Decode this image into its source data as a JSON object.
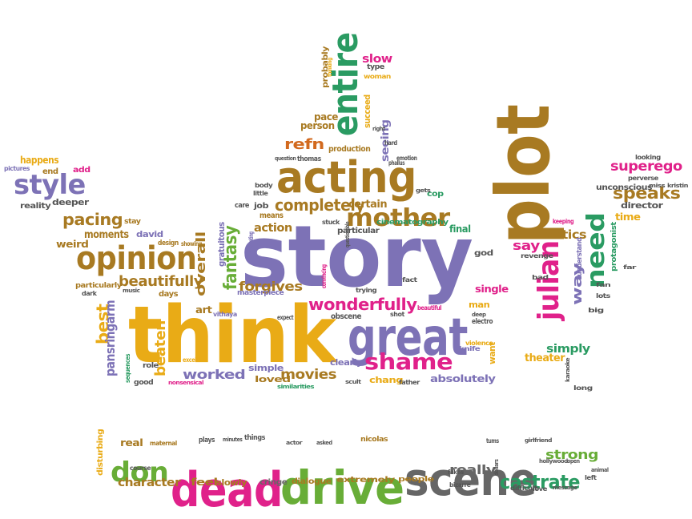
{
  "word_cloud": {
    "words": [
      {
        "text": "story",
        "color": "#7d72b6"
      },
      {
        "text": "think",
        "color": "#e9ab16"
      },
      {
        "text": "plot",
        "color": "#a87a22"
      },
      {
        "text": "great",
        "color": "#7d72b6"
      },
      {
        "text": "acting",
        "color": "#a87a22"
      },
      {
        "text": "entire",
        "color": "#2a9b62"
      },
      {
        "text": "opinion",
        "color": "#a87a22"
      },
      {
        "text": "style",
        "color": "#7d72b6"
      },
      {
        "text": "mother",
        "color": "#a87a22"
      },
      {
        "text": "julian",
        "color": "#e0218a"
      },
      {
        "text": "need",
        "color": "#2a9b62"
      },
      {
        "text": "shame",
        "color": "#e0218a"
      },
      {
        "text": "wonderfully",
        "color": "#e0218a"
      },
      {
        "text": "fantasy",
        "color": "#68ad37"
      },
      {
        "text": "completely",
        "color": "#a87a22"
      },
      {
        "text": "refn",
        "color": "#d2691e"
      },
      {
        "text": "pacing",
        "color": "#a87a22"
      },
      {
        "text": "beautifully",
        "color": "#a87a22"
      },
      {
        "text": "speaks",
        "color": "#a87a22"
      },
      {
        "text": "superego",
        "color": "#e0218a"
      },
      {
        "text": "best",
        "color": "#e9ab16"
      },
      {
        "text": "pansringarm",
        "color": "#7d72b6"
      },
      {
        "text": "beaten",
        "color": "#e9ab16"
      },
      {
        "text": "worked",
        "color": "#7d72b6"
      },
      {
        "text": "movies",
        "color": "#a87a22"
      },
      {
        "text": "forgives",
        "color": "#a87a22"
      },
      {
        "text": "overall",
        "color": "#a87a22"
      },
      {
        "text": "slow",
        "color": "#e0218a"
      },
      {
        "text": "critics",
        "color": "#a87a22"
      },
      {
        "text": "say",
        "color": "#e0218a"
      },
      {
        "text": "simply",
        "color": "#2a9b62"
      },
      {
        "text": "theater",
        "color": "#e9ab16"
      },
      {
        "text": "way",
        "color": "#7d72b6"
      },
      {
        "text": "absolutely",
        "color": "#7d72b6"
      },
      {
        "text": "chang",
        "color": "#e9ab16"
      },
      {
        "text": "clearly",
        "color": "#7d72b6"
      },
      {
        "text": "loved",
        "color": "#a87a22"
      },
      {
        "text": "simple",
        "color": "#7d72b6"
      },
      {
        "text": "action",
        "color": "#a87a22"
      },
      {
        "text": "masterpiece",
        "color": "#7d72b6"
      },
      {
        "text": "moments",
        "color": "#a87a22"
      },
      {
        "text": "david",
        "color": "#7d72b6"
      },
      {
        "text": "weird",
        "color": "#a87a22"
      },
      {
        "text": "deeper",
        "color": "#555555"
      },
      {
        "text": "happens",
        "color": "#e9ab16"
      },
      {
        "text": "reality",
        "color": "#555555"
      },
      {
        "text": "pictures",
        "color": "#7d72b6"
      },
      {
        "text": "end",
        "color": "#a87a22"
      },
      {
        "text": "add",
        "color": "#e0218a"
      },
      {
        "text": "certain",
        "color": "#a87a22"
      },
      {
        "text": "particular",
        "color": "#555555"
      },
      {
        "text": "cinematography",
        "color": "#2a9b62"
      },
      {
        "text": "final",
        "color": "#2a9b62"
      },
      {
        "text": "cop",
        "color": "#2a9b62"
      },
      {
        "text": "seeing",
        "color": "#7d72b6"
      },
      {
        "text": "succeed",
        "color": "#e9ab16"
      },
      {
        "text": "pace",
        "color": "#a87a22"
      },
      {
        "text": "person",
        "color": "#a87a22"
      },
      {
        "text": "probably",
        "color": "#a87a22"
      },
      {
        "text": "type",
        "color": "#555555"
      },
      {
        "text": "woman",
        "color": "#e9ab16"
      },
      {
        "text": "thinking",
        "color": "#e9ab16"
      },
      {
        "text": "production",
        "color": "#a87a22"
      },
      {
        "text": "thomas",
        "color": "#555555"
      },
      {
        "text": "question",
        "color": "#555555"
      },
      {
        "text": "job",
        "color": "#555555"
      },
      {
        "text": "means",
        "color": "#a87a22"
      },
      {
        "text": "body",
        "color": "#555555"
      },
      {
        "text": "little",
        "color": "#555555"
      },
      {
        "text": "care",
        "color": "#555555"
      },
      {
        "text": "stay",
        "color": "#a87a22"
      },
      {
        "text": "design",
        "color": "#a87a22"
      },
      {
        "text": "showing",
        "color": "#a87a22"
      },
      {
        "text": "gratuitous",
        "color": "#7d72b6"
      },
      {
        "text": "fascinating",
        "color": "#7d72b6"
      },
      {
        "text": "convincing",
        "color": "#e0218a"
      },
      {
        "text": "stuck",
        "color": "#555555"
      },
      {
        "text": "questionable",
        "color": "#555555"
      },
      {
        "text": "trying",
        "color": "#555555"
      },
      {
        "text": "fact",
        "color": "#555555"
      },
      {
        "text": "shot",
        "color": "#555555"
      },
      {
        "text": "beautiful",
        "color": "#e0218a"
      },
      {
        "text": "obscene",
        "color": "#555555"
      },
      {
        "text": "expect",
        "color": "#555555"
      },
      {
        "text": "vithaya",
        "color": "#7d72b6"
      },
      {
        "text": "art",
        "color": "#a87a22"
      },
      {
        "text": "days",
        "color": "#a87a22"
      },
      {
        "text": "particularly",
        "color": "#a87a22"
      },
      {
        "text": "dark",
        "color": "#555555"
      },
      {
        "text": "music",
        "color": "#555555"
      },
      {
        "text": "role",
        "color": "#555555"
      },
      {
        "text": "excellent",
        "color": "#e9ab16"
      },
      {
        "text": "sequences",
        "color": "#2a9b62"
      },
      {
        "text": "good",
        "color": "#555555"
      },
      {
        "text": "nonsensical",
        "color": "#e0218a"
      },
      {
        "text": "similarities",
        "color": "#2a9b62"
      },
      {
        "text": "scult",
        "color": "#555555"
      },
      {
        "text": "father",
        "color": "#555555"
      },
      {
        "text": "knife",
        "color": "#7d72b6"
      },
      {
        "text": "violence",
        "color": "#e9ab16"
      },
      {
        "text": "want",
        "color": "#e9ab16"
      },
      {
        "text": "electro",
        "color": "#555555"
      },
      {
        "text": "deep",
        "color": "#555555"
      },
      {
        "text": "man",
        "color": "#e9ab16"
      },
      {
        "text": "single",
        "color": "#e0218a"
      },
      {
        "text": "god",
        "color": "#555555"
      },
      {
        "text": "revenge",
        "color": "#555555"
      },
      {
        "text": "bad",
        "color": "#555555"
      },
      {
        "text": "understand",
        "color": "#7d72b6"
      },
      {
        "text": "keeping",
        "color": "#e0218a"
      },
      {
        "text": "protagonist",
        "color": "#2a9b62"
      },
      {
        "text": "far",
        "color": "#555555"
      },
      {
        "text": "lots",
        "color": "#555555"
      },
      {
        "text": "big",
        "color": "#555555"
      },
      {
        "text": "fan",
        "color": "#555555"
      },
      {
        "text": "time",
        "color": "#e9ab16"
      },
      {
        "text": "director",
        "color": "#555555"
      },
      {
        "text": "unconscious",
        "color": "#555555"
      },
      {
        "text": "perverse",
        "color": "#555555"
      },
      {
        "text": "miss",
        "color": "#555555"
      },
      {
        "text": "kristin",
        "color": "#555555"
      },
      {
        "text": "looking",
        "color": "#555555"
      },
      {
        "text": "long",
        "color": "#555555"
      },
      {
        "text": "karaoke",
        "color": "#555555"
      },
      {
        "text": "emotion",
        "color": "#555555"
      },
      {
        "text": "phallus",
        "color": "#555555"
      },
      {
        "text": "hard",
        "color": "#555555"
      },
      {
        "text": "right",
        "color": "#555555"
      },
      {
        "text": "gets",
        "color": "#555555"
      },
      {
        "text": "dead",
        "color": "#e0218a"
      },
      {
        "text": "drive",
        "color": "#68ad37"
      },
      {
        "text": "scene",
        "color": "#666666"
      },
      {
        "text": "don",
        "color": "#68ad37"
      },
      {
        "text": "castrate",
        "color": "#2a9b62"
      },
      {
        "text": "strong",
        "color": "#68ad37"
      },
      {
        "text": "really",
        "color": "#666666"
      },
      {
        "text": "character",
        "color": "#a87a22"
      },
      {
        "text": "feel",
        "color": "#a87a22"
      },
      {
        "text": "slowly",
        "color": "#a87a22"
      },
      {
        "text": "cringe",
        "color": "#666666"
      },
      {
        "text": "dialogue",
        "color": "#a87a22"
      },
      {
        "text": "extremely",
        "color": "#a87a22"
      },
      {
        "text": "people",
        "color": "#a87a22"
      },
      {
        "text": "real",
        "color": "#a87a22"
      },
      {
        "text": "maternal",
        "color": "#a87a22"
      },
      {
        "text": "plays",
        "color": "#555555"
      },
      {
        "text": "minutes",
        "color": "#555555"
      },
      {
        "text": "things",
        "color": "#555555"
      },
      {
        "text": "actor",
        "color": "#555555"
      },
      {
        "text": "asked",
        "color": "#555555"
      },
      {
        "text": "nicolas",
        "color": "#a87a22"
      },
      {
        "text": "disturbing",
        "color": "#e9ab16"
      },
      {
        "text": "course",
        "color": "#555555"
      },
      {
        "text": "fakes",
        "color": "#555555"
      },
      {
        "text": "bizarre",
        "color": "#555555"
      },
      {
        "text": "difficult",
        "color": "#555555"
      },
      {
        "text": "love",
        "color": "#555555"
      },
      {
        "text": "message",
        "color": "#555555"
      },
      {
        "text": "tums",
        "color": "#555555"
      },
      {
        "text": "girlfriend",
        "color": "#555555"
      },
      {
        "text": "hollywood",
        "color": "#555555"
      },
      {
        "text": "open",
        "color": "#555555"
      },
      {
        "text": "animal",
        "color": "#555555"
      },
      {
        "text": "left",
        "color": "#555555"
      },
      {
        "text": "dollars",
        "color": "#555555"
      }
    ]
  }
}
